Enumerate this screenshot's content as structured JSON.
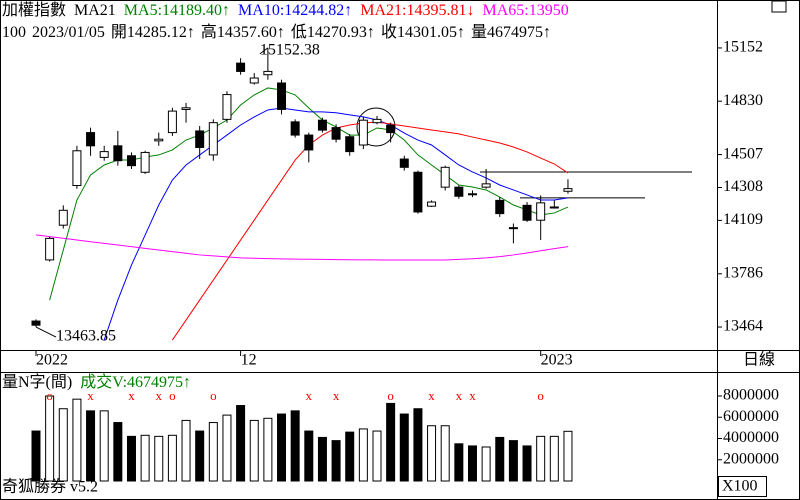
{
  "chart_data": [
    {
      "type": "candlestick",
      "title": "加權指數",
      "subtitle": "MA21",
      "info": [
        "100",
        "2023/01/05",
        "開14285.12↑",
        "高14357.60↑",
        "低14270.93↑",
        "收14301.05↑",
        "量4674975↑"
      ],
      "period": "日線",
      "categories": [
        "2022",
        null,
        null,
        null,
        null,
        null,
        null,
        null,
        null,
        null,
        null,
        null,
        null,
        null,
        null,
        "12",
        null,
        null,
        null,
        null,
        null,
        null,
        null,
        null,
        null,
        null,
        null,
        null,
        null,
        null,
        null,
        null,
        null,
        null,
        null,
        null,
        null,
        "2023",
        null,
        null
      ],
      "open": [
        13500,
        13870,
        14080,
        14320,
        14640,
        14490,
        14560,
        14500,
        14400,
        14590,
        14640,
        14780,
        14650,
        14505,
        14720,
        15060,
        14940,
        14990,
        14940,
        14705,
        14625,
        14715,
        14670,
        14615,
        14565,
        14700,
        14685,
        14480,
        14400,
        14195,
        14310,
        14310,
        14270,
        14310,
        14230,
        14065,
        14200,
        14110,
        14185,
        14285.12
      ],
      "high": [
        13510,
        14010,
        14200,
        14560,
        14670,
        14560,
        14650,
        14520,
        14530,
        14640,
        14790,
        14820,
        14680,
        14720,
        14890,
        15090,
        15000,
        15152.38,
        14960,
        14720,
        14640,
        14730,
        14690,
        14630,
        14735,
        14740,
        14700,
        14500,
        14410,
        14230,
        14440,
        14320,
        14290,
        14420,
        14250,
        14090,
        14220,
        14260,
        14230,
        14357.6
      ],
      "low": [
        13463.85,
        13860,
        14060,
        14300,
        14500,
        14470,
        14440,
        14420,
        14390,
        14560,
        14620,
        14700,
        14480,
        14470,
        14700,
        14990,
        14930,
        14960,
        14750,
        14610,
        14460,
        14640,
        14580,
        14500,
        14540,
        14690,
        14580,
        14410,
        14150,
        14190,
        14290,
        14240,
        14250,
        14300,
        14130,
        13970,
        14100,
        13990,
        14180,
        14270.93
      ],
      "close": [
        13475,
        14000,
        14170,
        14530,
        14560,
        14525,
        14470,
        14440,
        14520,
        14600,
        14770,
        14790,
        14550,
        14700,
        14870,
        15010,
        14970,
        15010,
        14780,
        14625,
        14535,
        14655,
        14600,
        14525,
        14715,
        14720,
        14640,
        14430,
        14160,
        14220,
        14430,
        14255,
        14265,
        14330,
        14150,
        14060,
        14110,
        14215,
        14190,
        14301.05
      ],
      "up_color": "#ffffff",
      "down_color": "#000000",
      "series": [
        {
          "name": "MA5:14189.40↑",
          "color": "#008000",
          "values": [
            null,
            13627,
            13930,
            14232,
            14384,
            14444,
            14474,
            14474,
            14492,
            14505,
            14535,
            14595,
            14625,
            14668,
            14716,
            14807,
            14868,
            14910,
            14898,
            14868,
            14789,
            14716,
            14674,
            14625,
            14625,
            14668,
            14656,
            14595,
            14505,
            14444,
            14384,
            14323,
            14311,
            14293,
            14250,
            14202,
            14172,
            14142,
            14154,
            14189.4
          ]
        },
        {
          "name": "MA10:14244.82↑",
          "color": "#0000ff",
          "values": [
            null,
            null,
            null,
            null,
            null,
            13385,
            13627,
            13839,
            14020,
            14202,
            14353,
            14444,
            14505,
            14565,
            14625,
            14686,
            14735,
            14777,
            14789,
            14777,
            14765,
            14765,
            14760,
            14747,
            14735,
            14716,
            14686,
            14637,
            14595,
            14565,
            14505,
            14444,
            14402,
            14366,
            14323,
            14293,
            14263,
            14232,
            14232,
            14244.82
          ]
        },
        {
          "name": "MA21:14395.81↓",
          "color": "#ff0000",
          "values": [
            null,
            null,
            null,
            null,
            null,
            null,
            null,
            null,
            null,
            null,
            13385,
            13506,
            13627,
            13748,
            13869,
            13990,
            14111,
            14232,
            14353,
            14474,
            14565,
            14625,
            14668,
            14686,
            14698,
            14704,
            14692,
            14680,
            14668,
            14656,
            14644,
            14632,
            14613,
            14595,
            14577,
            14553,
            14523,
            14486,
            14450,
            14395.81
          ]
        },
        {
          "name": "MA65:13950",
          "color": "#ff00ff",
          "values": [
            14021,
            14011,
            14001,
            13990,
            13980,
            13970,
            13960,
            13950,
            13940,
            13930,
            13920,
            13910,
            13900,
            13894,
            13888,
            13882,
            13880,
            13878,
            13876,
            13875,
            13874,
            13873,
            13872,
            13871,
            13870,
            13870,
            13869,
            13869,
            13869,
            13869,
            13869,
            13873,
            13877,
            13882,
            13890,
            13900,
            13912,
            13925,
            13938,
            13950
          ]
        }
      ],
      "hlines": [
        14402,
        14245
      ],
      "ylim": [
        13325,
        15442
      ],
      "yticks": [
        15152,
        14830,
        14507,
        14308,
        14109,
        13786,
        13464
      ]
    },
    {
      "type": "bar",
      "title": "量N字(間)",
      "subtitle": "成交V:4674975↑",
      "subtitle_color": "#008000",
      "values": [
        4700000,
        8000000,
        6800000,
        7700000,
        6600000,
        6600000,
        5500000,
        4200000,
        4300000,
        4200000,
        4300000,
        5700000,
        4700000,
        5500000,
        6200000,
        7100000,
        5700000,
        5900000,
        6300000,
        6600000,
        4700000,
        4100000,
        3800000,
        4600000,
        4900000,
        4700000,
        7300000,
        6300000,
        6800000,
        5200000,
        5200000,
        3500000,
        3300000,
        3200000,
        4100000,
        3800000,
        3300000,
        4200000,
        4200000,
        4674975
      ],
      "signals": [
        null,
        "o",
        null,
        null,
        "x",
        null,
        null,
        "x",
        null,
        "x",
        "o",
        null,
        null,
        "o",
        null,
        null,
        null,
        null,
        null,
        null,
        "x",
        null,
        "x",
        null,
        null,
        null,
        "o",
        null,
        null,
        "x",
        null,
        "x",
        "x",
        null,
        null,
        null,
        null,
        "o",
        null,
        null
      ],
      "signal_color": "#ff0000",
      "ylim": [
        0,
        9880000
      ],
      "yticks": [
        8000000,
        6000000,
        4000000,
        2000000
      ],
      "scale_label": "X100"
    }
  ],
  "footer": "奇狐勝券 v5.2"
}
